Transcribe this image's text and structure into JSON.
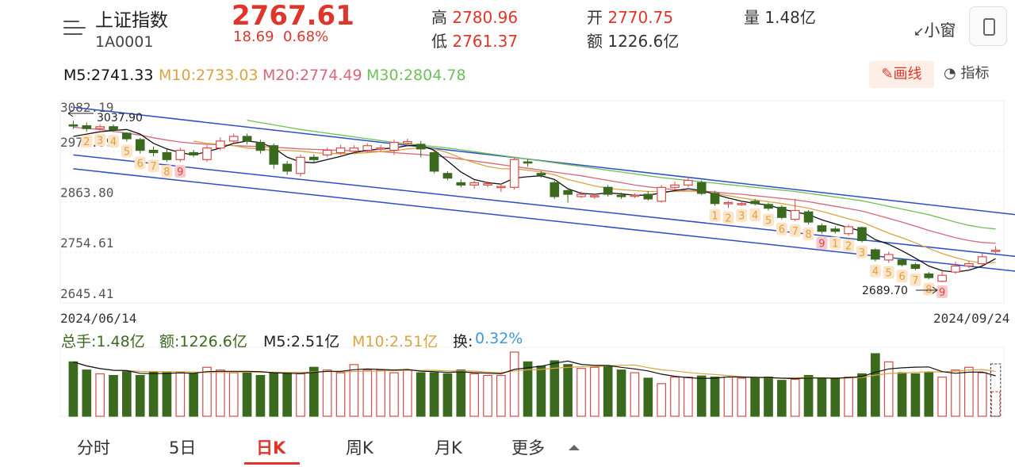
{
  "header": {
    "name": "上证指数",
    "code": "1A0001",
    "price": "2767.61",
    "change": "18.69",
    "change_pct": "0.68%",
    "high_label": "高",
    "high": "2780.96",
    "low_label": "低",
    "low": "2761.37",
    "open_label": "开",
    "open": "2770.75",
    "amount_label": "额",
    "amount": "1226.6亿",
    "volume_label": "量",
    "volume": "1.48亿",
    "mini_label": "小窗"
  },
  "ma_legend": [
    {
      "label": "M5:2741.33",
      "color": "#111111"
    },
    {
      "label": "M10:2733.03",
      "color": "#d9a441"
    },
    {
      "label": "M20:2774.49",
      "color": "#d9667a"
    },
    {
      "label": "M30:2804.78",
      "color": "#6fbf5a"
    }
  ],
  "tools": {
    "draw": "画线",
    "indicator": "指标"
  },
  "vol_legend": [
    {
      "label": "总手:1.48亿",
      "color": "#3b6a1f"
    },
    {
      "label": "额:1226.6亿",
      "color": "#3b6a1f"
    },
    {
      "label": "M5:2.51亿",
      "color": "#222222"
    },
    {
      "label": "M10:2.51亿",
      "color": "#d9a441"
    },
    {
      "label": "换:",
      "color": "#222222"
    },
    {
      "label": "0.32%",
      "color": "#3a9ad9"
    }
  ],
  "tabs": [
    {
      "label": "分时",
      "active": false
    },
    {
      "label": "5日",
      "active": false
    },
    {
      "label": "日K",
      "active": true
    },
    {
      "label": "周K",
      "active": false
    },
    {
      "label": "月K",
      "active": false
    },
    {
      "label": "更多",
      "active": false
    }
  ],
  "chart_data": {
    "type": "candlestick",
    "start_date": "2024/06/14",
    "end_date": "2024/09/24",
    "y_ticks": [
      "3082.19",
      "2972.99",
      "2863.80",
      "2754.61",
      "2645.41"
    ],
    "ylim": [
      2645.41,
      3082.19
    ],
    "high_annotation": "3037.90",
    "low_annotation": "2689.70",
    "colors": {
      "up": "#d94b48",
      "down": "#3b6a1f",
      "trend": "#2c4fc4"
    },
    "candles": [
      [
        3030,
        3028,
        3039,
        3021
      ],
      [
        3028,
        3022,
        3035,
        3015
      ],
      [
        3022,
        3026,
        3031,
        3018
      ],
      [
        3026,
        3019,
        3031,
        3015
      ],
      [
        3012,
        3000,
        3014,
        2994
      ],
      [
        2998,
        2975,
        3002,
        2968
      ],
      [
        2975,
        2970,
        2983,
        2962
      ],
      [
        2970,
        2955,
        2977,
        2950
      ],
      [
        2955,
        2975,
        2981,
        2950
      ],
      [
        2970,
        2965,
        2976,
        2960
      ],
      [
        2955,
        2980,
        2986,
        2950
      ],
      [
        2980,
        2995,
        3003,
        2975
      ],
      [
        2995,
        3005,
        3011,
        2990
      ],
      [
        3005,
        2995,
        3011,
        2988
      ],
      [
        2992,
        2975,
        2998,
        2968
      ],
      [
        2985,
        2945,
        2990,
        2935
      ],
      [
        2945,
        2930,
        2952,
        2922
      ],
      [
        2925,
        2960,
        2966,
        2918
      ],
      [
        2960,
        2955,
        2966,
        2948
      ],
      [
        2965,
        2975,
        2981,
        2960
      ],
      [
        2970,
        2980,
        2987,
        2965
      ],
      [
        2973,
        2980,
        2986,
        2968
      ],
      [
        2975,
        2985,
        2990,
        2970
      ],
      [
        2978,
        2980,
        2987,
        2972
      ],
      [
        2975,
        2992,
        2998,
        2965
      ],
      [
        2990,
        2994,
        3000,
        2985
      ],
      [
        2988,
        2978,
        2995,
        2960
      ],
      [
        2970,
        2930,
        2975,
        2925
      ],
      [
        2925,
        2915,
        2930,
        2910
      ],
      [
        2905,
        2900,
        2912,
        2895
      ],
      [
        2900,
        2905,
        2910,
        2892
      ],
      [
        2900,
        2903,
        2908,
        2895
      ],
      [
        2895,
        2897,
        2903,
        2885
      ],
      [
        2895,
        2955,
        2960,
        2890
      ],
      [
        2950,
        2948,
        2956,
        2940
      ],
      [
        2925,
        2922,
        2930,
        2916
      ],
      [
        2905,
        2875,
        2910,
        2870
      ],
      [
        2888,
        2880,
        2893,
        2862
      ],
      [
        2875,
        2880,
        2886,
        2872
      ],
      [
        2875,
        2877,
        2881,
        2870
      ],
      [
        2895,
        2880,
        2900,
        2875
      ],
      [
        2878,
        2875,
        2884,
        2870
      ],
      [
        2878,
        2878,
        2882,
        2872
      ],
      [
        2880,
        2870,
        2887,
        2866
      ],
      [
        2865,
        2895,
        2900,
        2862
      ],
      [
        2895,
        2900,
        2908,
        2890
      ],
      [
        2900,
        2910,
        2918,
        2895
      ],
      [
        2905,
        2882,
        2910,
        2878
      ],
      [
        2882,
        2860,
        2887,
        2855
      ],
      [
        2860,
        2862,
        2866,
        2850
      ],
      [
        2860,
        2860,
        2866,
        2855
      ],
      [
        2865,
        2860,
        2870,
        2856
      ],
      [
        2858,
        2850,
        2862,
        2845
      ],
      [
        2852,
        2830,
        2856,
        2826
      ],
      [
        2826,
        2845,
        2870,
        2822
      ],
      [
        2842,
        2820,
        2846,
        2815
      ],
      [
        2812,
        2800,
        2817,
        2795
      ],
      [
        2805,
        2800,
        2811,
        2795
      ],
      [
        2795,
        2810,
        2814,
        2790
      ],
      [
        2808,
        2780,
        2810,
        2776
      ],
      [
        2760,
        2740,
        2763,
        2735
      ],
      [
        2738,
        2750,
        2756,
        2732
      ],
      [
        2738,
        2728,
        2742,
        2724
      ],
      [
        2728,
        2720,
        2732,
        2716
      ],
      [
        2708,
        2700,
        2712,
        2696
      ],
      [
        2692,
        2705,
        2718,
        2690
      ],
      [
        2712,
        2725,
        2734,
        2708
      ],
      [
        2725,
        2730,
        2736,
        2720
      ],
      [
        2730,
        2745,
        2752,
        2726
      ],
      [
        2758,
        2759,
        2768,
        2752
      ]
    ],
    "ma5": [
      3005,
      3010,
      3015,
      3018,
      3020,
      3010,
      2990,
      2978,
      2970,
      2965,
      2972,
      2980,
      2990,
      2995,
      2992,
      2980,
      2960,
      2950,
      2948,
      2955,
      2962,
      2970,
      2975,
      2978,
      2980,
      2985,
      2986,
      2975,
      2952,
      2928,
      2912,
      2905,
      2902,
      2915,
      2918,
      2920,
      2912,
      2892,
      2882,
      2880,
      2883,
      2881,
      2878,
      2878,
      2883,
      2888,
      2892,
      2888,
      2880,
      2872,
      2865,
      2860,
      2857,
      2848,
      2842,
      2836,
      2825,
      2816,
      2808,
      2800,
      2782,
      2772,
      2758,
      2742,
      2725,
      2715,
      2712,
      2716,
      2725,
      2741
    ],
    "ma10": [
      null,
      null,
      null,
      null,
      null,
      null,
      null,
      null,
      null,
      2995,
      2990,
      2988,
      2985,
      2980,
      2978,
      2975,
      2975,
      2973,
      2970,
      2968,
      2968,
      2968,
      2970,
      2972,
      2974,
      2978,
      2980,
      2978,
      2970,
      2958,
      2948,
      2940,
      2935,
      2935,
      2932,
      2928,
      2922,
      2912,
      2905,
      2898,
      2893,
      2890,
      2888,
      2886,
      2886,
      2886,
      2887,
      2886,
      2882,
      2877,
      2872,
      2868,
      2864,
      2860,
      2855,
      2850,
      2843,
      2835,
      2827,
      2820,
      2808,
      2796,
      2786,
      2775,
      2763,
      2752,
      2743,
      2736,
      2731,
      2733
    ],
    "ma20": [
      3025,
      3022,
      3020,
      3016,
      3012,
      3008,
      3002,
      2997,
      2993,
      2990,
      2988,
      2987,
      2985,
      2984,
      2983,
      2982,
      2980,
      2978,
      2977,
      2976,
      2975,
      2974,
      2973,
      2972,
      2970,
      2968,
      2966,
      2963,
      2960,
      2956,
      2952,
      2948,
      2944,
      2940,
      2936,
      2932,
      2928,
      2924,
      2920,
      2915,
      2910,
      2905,
      2900,
      2896,
      2893,
      2890,
      2888,
      2887,
      2885,
      2882,
      2880,
      2877,
      2874,
      2871,
      2868,
      2864,
      2859,
      2854,
      2849,
      2844,
      2836,
      2828,
      2820,
      2811,
      2802,
      2794,
      2786,
      2780,
      2776,
      2774
    ],
    "ma30": [
      null,
      null,
      null,
      null,
      null,
      null,
      null,
      null,
      null,
      null,
      null,
      null,
      null,
      3040,
      3035,
      3030,
      3025,
      3020,
      3016,
      3012,
      3008,
      3004,
      3000,
      2996,
      2992,
      2989,
      2986,
      2983,
      2980,
      2976,
      2972,
      2968,
      2964,
      2960,
      2956,
      2952,
      2948,
      2944,
      2940,
      2936,
      2932,
      2928,
      2924,
      2920,
      2916,
      2913,
      2910,
      2907,
      2904,
      2901,
      2898,
      2895,
      2892,
      2889,
      2886,
      2882,
      2878,
      2874,
      2870,
      2866,
      2860,
      2854,
      2848,
      2842,
      2836,
      2828,
      2820,
      2813,
      2808,
      2805
    ],
    "trend_lines": [
      {
        "p1": [
          0,
          3068
        ],
        "p2": [
          71,
          2832
        ]
      },
      {
        "p1": [
          0,
          2965
        ],
        "p2": [
          71,
          2742
        ]
      },
      {
        "p1": [
          0,
          2935
        ],
        "p2": [
          71,
          2710
        ]
      }
    ],
    "td_marks": [
      {
        "i": 1,
        "t": "2"
      },
      {
        "i": 2,
        "t": "3"
      },
      {
        "i": 3,
        "t": "4"
      },
      {
        "i": 4,
        "t": "5"
      },
      {
        "i": 5,
        "t": "6"
      },
      {
        "i": 6,
        "t": "7"
      },
      {
        "i": 7,
        "t": "8"
      },
      {
        "i": 8,
        "t": "9"
      },
      {
        "i": 48,
        "t": "1"
      },
      {
        "i": 49,
        "t": "2"
      },
      {
        "i": 50,
        "t": "3"
      },
      {
        "i": 51,
        "t": "4"
      },
      {
        "i": 52,
        "t": "5"
      },
      {
        "i": 53,
        "t": "6"
      },
      {
        "i": 54,
        "t": "7"
      },
      {
        "i": 55,
        "t": "8"
      },
      {
        "i": 56,
        "t": "9"
      },
      {
        "i": 57,
        "t": "1"
      },
      {
        "i": 58,
        "t": "2"
      },
      {
        "i": 59,
        "t": "3"
      },
      {
        "i": 60,
        "t": "4"
      },
      {
        "i": 61,
        "t": "5"
      },
      {
        "i": 62,
        "t": "6"
      },
      {
        "i": 63,
        "t": "7"
      },
      {
        "i": 64,
        "t": "8"
      },
      {
        "i": 65,
        "t": "9"
      }
    ],
    "volumes": [
      1.0,
      0.85,
      0.78,
      0.75,
      0.82,
      0.75,
      0.82,
      0.8,
      0.8,
      0.78,
      0.9,
      0.85,
      0.8,
      0.8,
      0.75,
      0.8,
      0.8,
      0.78,
      0.9,
      0.85,
      0.8,
      0.95,
      0.85,
      0.85,
      0.8,
      0.85,
      0.8,
      0.8,
      0.78,
      0.85,
      0.78,
      0.75,
      0.75,
      1.18,
      1.0,
      0.92,
      1.02,
      0.95,
      0.88,
      0.9,
      0.92,
      0.85,
      0.8,
      0.7,
      0.6,
      0.72,
      0.72,
      0.74,
      0.72,
      0.72,
      0.7,
      0.7,
      0.72,
      0.66,
      0.68,
      0.75,
      0.7,
      0.7,
      0.72,
      0.78,
      1.15,
      1.0,
      0.8,
      0.78,
      0.8,
      0.72,
      0.85,
      0.9,
      0.8,
      0.45
    ]
  }
}
